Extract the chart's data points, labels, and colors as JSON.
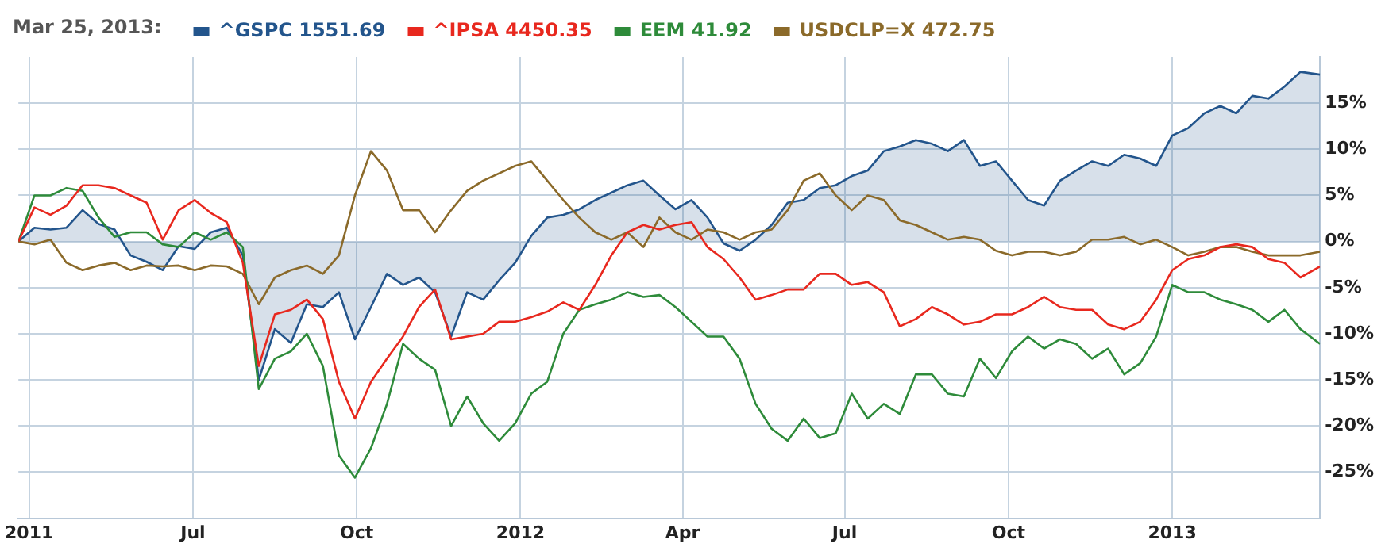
{
  "chart_data": {
    "type": "line",
    "title": "Mar 25, 2013:",
    "x": [
      "2011-03-25",
      "2011-04-03",
      "2011-04-12",
      "2011-04-21",
      "2011-04-30",
      "2011-05-09",
      "2011-05-18",
      "2011-05-27",
      "2011-06-05",
      "2011-06-14",
      "2011-06-23",
      "2011-07-02",
      "2011-07-11",
      "2011-07-20",
      "2011-07-29",
      "2011-08-07",
      "2011-08-16",
      "2011-08-25",
      "2011-09-03",
      "2011-09-12",
      "2011-09-21",
      "2011-09-30",
      "2011-10-09",
      "2011-10-18",
      "2011-10-27",
      "2011-11-05",
      "2011-11-14",
      "2011-11-23",
      "2011-12-02",
      "2011-12-11",
      "2011-12-20",
      "2011-12-29",
      "2012-01-07",
      "2012-01-16",
      "2012-01-25",
      "2012-02-03",
      "2012-02-12",
      "2012-02-21",
      "2012-03-01",
      "2012-03-10",
      "2012-03-19",
      "2012-03-28",
      "2012-04-06",
      "2012-04-15",
      "2012-04-24",
      "2012-05-03",
      "2012-05-12",
      "2012-05-21",
      "2012-05-30",
      "2012-06-08",
      "2012-06-17",
      "2012-06-26",
      "2012-07-05",
      "2012-07-14",
      "2012-07-23",
      "2012-08-01",
      "2012-08-10",
      "2012-08-19",
      "2012-08-28",
      "2012-09-06",
      "2012-09-15",
      "2012-09-24",
      "2012-10-03",
      "2012-10-12",
      "2012-10-21",
      "2012-10-30",
      "2012-11-08",
      "2012-11-17",
      "2012-11-26",
      "2012-12-05",
      "2012-12-14",
      "2012-12-23",
      "2013-01-01",
      "2013-01-10",
      "2013-01-19",
      "2013-01-28",
      "2013-02-06",
      "2013-02-15",
      "2013-02-24",
      "2013-03-05",
      "2013-03-14",
      "2013-03-25"
    ],
    "series": [
      {
        "name": "^GSPC 1551.69",
        "type": "area",
        "color": "#23558c",
        "values": [
          0,
          1.5,
          1.3,
          1.5,
          3.4,
          1.9,
          1.3,
          -1.5,
          -2.2,
          -3.1,
          -0.5,
          -0.8,
          1.0,
          1.5,
          -1.5,
          -15,
          -9.5,
          -11,
          -6.8,
          -7.1,
          -5.5,
          -10.6,
          -7.1,
          -3.5,
          -4.7,
          -3.9,
          -5.5,
          -10.3,
          -5.5,
          -6.3,
          -4.2,
          -2.3,
          0.6,
          2.6,
          2.9,
          3.5,
          4.5,
          5.3,
          6.1,
          6.6,
          5.0,
          3.5,
          4.5,
          2.6,
          -0.2,
          -1.0,
          0.2,
          1.8,
          4.2,
          4.5,
          5.8,
          6.1,
          7.1,
          7.7,
          9.8,
          10.3,
          11,
          10.6,
          9.8,
          11,
          8.2,
          8.7,
          6.6,
          4.5,
          3.9,
          6.6,
          7.7,
          8.7,
          8.2,
          9.4,
          9.0,
          8.2,
          11.5,
          12.3,
          13.9,
          14.7,
          13.9,
          15.8,
          15.5,
          16.8,
          18.4,
          18.1
        ]
      },
      {
        "name": "^IPSA 4450.35",
        "color": "#e8281e",
        "values": [
          0,
          3.7,
          2.9,
          3.9,
          6.1,
          6.1,
          5.8,
          5.0,
          4.2,
          0.2,
          3.4,
          4.5,
          3.1,
          2.1,
          -2.3,
          -13.5,
          -7.9,
          -7.4,
          -6.3,
          -8.4,
          -15.2,
          -19.2,
          -15.2,
          -12.7,
          -10.3,
          -7.1,
          -5.2,
          -10.6,
          -10.3,
          -10.0,
          -8.7,
          -8.7,
          -8.2,
          -7.6,
          -6.6,
          -7.4,
          -4.7,
          -1.5,
          1.0,
          1.8,
          1.3,
          1.8,
          2.1,
          -0.6,
          -1.9,
          -3.9,
          -6.3,
          -5.8,
          -5.2,
          -5.2,
          -3.5,
          -3.5,
          -4.7,
          -4.4,
          -5.5,
          -9.2,
          -8.4,
          -7.1,
          -7.9,
          -9.0,
          -8.7,
          -7.9,
          -7.9,
          -7.1,
          -6.0,
          -7.1,
          -7.4,
          -7.4,
          -9.0,
          -9.5,
          -8.7,
          -6.3,
          -3.1,
          -1.9,
          -1.5,
          -0.6,
          -0.3,
          -0.6,
          -1.9,
          -2.3,
          -3.9,
          -2.7
        ]
      },
      {
        "name": "EEM 41.92",
        "color": "#2e8b3a",
        "values": [
          0,
          5.0,
          5.0,
          5.8,
          5.5,
          2.6,
          0.5,
          1.0,
          1.0,
          -0.3,
          -0.6,
          1.0,
          0.2,
          1.0,
          -0.6,
          -16.0,
          -12.7,
          -11.9,
          -10.0,
          -13.5,
          -23.2,
          -25.6,
          -22.4,
          -17.6,
          -11.1,
          -12.7,
          -13.9,
          -20.0,
          -16.8,
          -19.7,
          -21.6,
          -19.7,
          -16.5,
          -15.2,
          -10.0,
          -7.4,
          -6.8,
          -6.3,
          -5.5,
          -6.0,
          -5.8,
          -7.1,
          -8.7,
          -10.3,
          -10.3,
          -12.7,
          -17.6,
          -20.3,
          -21.6,
          -19.2,
          -21.3,
          -20.8,
          -16.5,
          -19.2,
          -17.6,
          -18.7,
          -14.4,
          -14.4,
          -16.5,
          -16.8,
          -12.7,
          -14.8,
          -11.9,
          -10.3,
          -11.6,
          -10.6,
          -11.1,
          -12.7,
          -11.6,
          -14.4,
          -13.2,
          -10.3,
          -4.7,
          -5.5,
          -5.5,
          -6.3,
          -6.8,
          -7.4,
          -8.7,
          -7.4,
          -9.5,
          -11.1
        ]
      },
      {
        "name": "USDCLP=X 472.75",
        "color": "#8b6a2a",
        "values": [
          0,
          -0.3,
          0.2,
          -2.3,
          -3.1,
          -2.6,
          -2.3,
          -3.1,
          -2.6,
          -2.7,
          -2.6,
          -3.1,
          -2.6,
          -2.7,
          -3.5,
          -6.8,
          -3.9,
          -3.1,
          -2.6,
          -3.5,
          -1.5,
          5.0,
          9.8,
          7.7,
          3.4,
          3.4,
          1.0,
          3.4,
          5.5,
          6.6,
          7.4,
          8.2,
          8.7,
          6.6,
          4.5,
          2.6,
          1.0,
          0.2,
          1.0,
          -0.6,
          2.6,
          1.0,
          0.2,
          1.3,
          1.0,
          0.2,
          1.0,
          1.3,
          3.4,
          6.6,
          7.4,
          5.0,
          3.4,
          5.0,
          4.5,
          2.3,
          1.8,
          1.0,
          0.2,
          0.5,
          0.2,
          -1.0,
          -1.5,
          -1.1,
          -1.1,
          -1.5,
          -1.1,
          0.2,
          0.2,
          0.5,
          -0.3,
          0.2,
          -0.6,
          -1.5,
          -1.1,
          -0.6,
          -0.6,
          -1.1,
          -1.5,
          -1.5,
          -1.5,
          -1.1
        ]
      }
    ],
    "xlim": [
      "2011-03-25",
      "2013-03-25"
    ],
    "xticks": [
      {
        "value": "2011-03-31",
        "label": "2011"
      },
      {
        "value": "2011-07-01",
        "label": "Jul"
      },
      {
        "value": "2011-10-01",
        "label": "Oct"
      },
      {
        "value": "2012-01-01",
        "label": "2012"
      },
      {
        "value": "2012-04-01",
        "label": "Apr"
      },
      {
        "value": "2012-07-01",
        "label": "Jul"
      },
      {
        "value": "2012-10-01",
        "label": "Oct"
      },
      {
        "value": "2013-01-01",
        "label": "2013"
      }
    ],
    "ylim": [
      -30,
      20
    ],
    "yticks": [
      {
        "value": -25,
        "label": "-25%"
      },
      {
        "value": -20,
        "label": "-20%"
      },
      {
        "value": -15,
        "label": "-15%"
      },
      {
        "value": -10,
        "label": "-10%"
      },
      {
        "value": -5,
        "label": "-5%"
      },
      {
        "value": 0,
        "label": "0%"
      },
      {
        "value": 5,
        "label": "5%"
      },
      {
        "value": 10,
        "label": "10%"
      },
      {
        "value": 15,
        "label": "15%"
      }
    ],
    "grid": true,
    "legend": "top left"
  }
}
